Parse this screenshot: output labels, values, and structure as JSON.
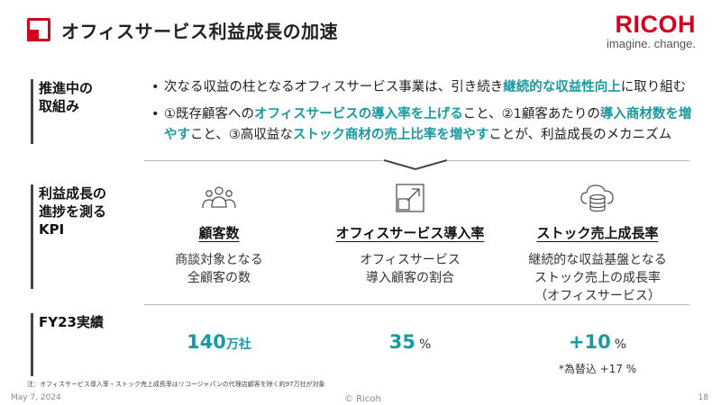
{
  "header": {
    "title": "オフィスサービス利益成長の加速",
    "logo_main": "RICOH",
    "logo_tagline": "imagine. change."
  },
  "section1": {
    "label_line1": "推進中の",
    "label_line2": "取組み",
    "bullet1": {
      "text_a": "次なる収益の柱となるオフィスサービス事業は、引き続き",
      "highlight_a": "継続的な収益性向上",
      "text_b": "に取り組む"
    },
    "bullet2": {
      "text_a": "①既存顧客への",
      "highlight_a": "オフィスサービスの導入率を上げる",
      "text_b": "こと、②1顧客あたりの",
      "highlight_b": "導入商材数を増やす",
      "text_c": "こと、③高収益な",
      "highlight_c": "ストック商材の売上比率を増やす",
      "text_d": "ことが、利益成長のメカニズム"
    }
  },
  "section2": {
    "label_line1": "利益成長の",
    "label_line2": "進捗を測る",
    "label_line3": "KPI",
    "kpis": [
      {
        "icon": "people-group-icon",
        "title": "顧客数",
        "desc_line1": "商談対象となる",
        "desc_line2": "全顧客の数",
        "desc_line3": ""
      },
      {
        "icon": "expand-arrow-icon",
        "title": "オフィスサービス導入率",
        "desc_line1": "オフィスサービス",
        "desc_line2": "導入顧客の割合",
        "desc_line3": ""
      },
      {
        "icon": "cloud-database-icon",
        "title": "ストック売上成長率",
        "desc_line1": "継続的な収益基盤となる",
        "desc_line2": "ストック売上の成長率",
        "desc_line3": "（オフィスサービス）"
      }
    ]
  },
  "section3": {
    "label": "FY23実績",
    "results": [
      {
        "value": "140",
        "unit": "万社"
      },
      {
        "value": "35",
        "unit": "%"
      },
      {
        "value": "+10",
        "unit": "%",
        "note": "*為替込 +17 %"
      }
    ]
  },
  "footer": {
    "footnote": "注：オフィスサービス導入率・ストック売上成長率はリコージャパンの代理店顧客を除く約97万社が対象",
    "date": "May 7, 2024",
    "copyright": "© Ricoh",
    "page": "18"
  },
  "colors": {
    "brand_red": "#d1001f",
    "accent_teal": "#1a9aa0"
  }
}
